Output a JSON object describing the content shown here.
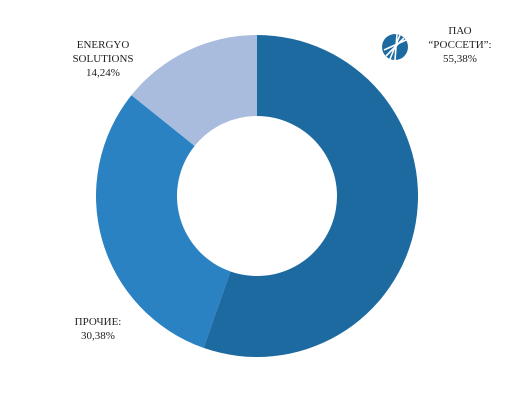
{
  "chart_data": {
    "type": "pie",
    "categories": [
      "ПАО “РОССЕТИ”:",
      "ПРОЧИЕ:",
      "ENERGYO SOLUTIONS"
    ],
    "values": [
      55.38,
      30.38,
      14.24
    ],
    "value_labels": [
      "55,38%",
      "30,38%",
      "14,24%"
    ],
    "colors": [
      "#1d6aa1",
      "#2a82c3",
      "#a9bcde"
    ]
  }
}
